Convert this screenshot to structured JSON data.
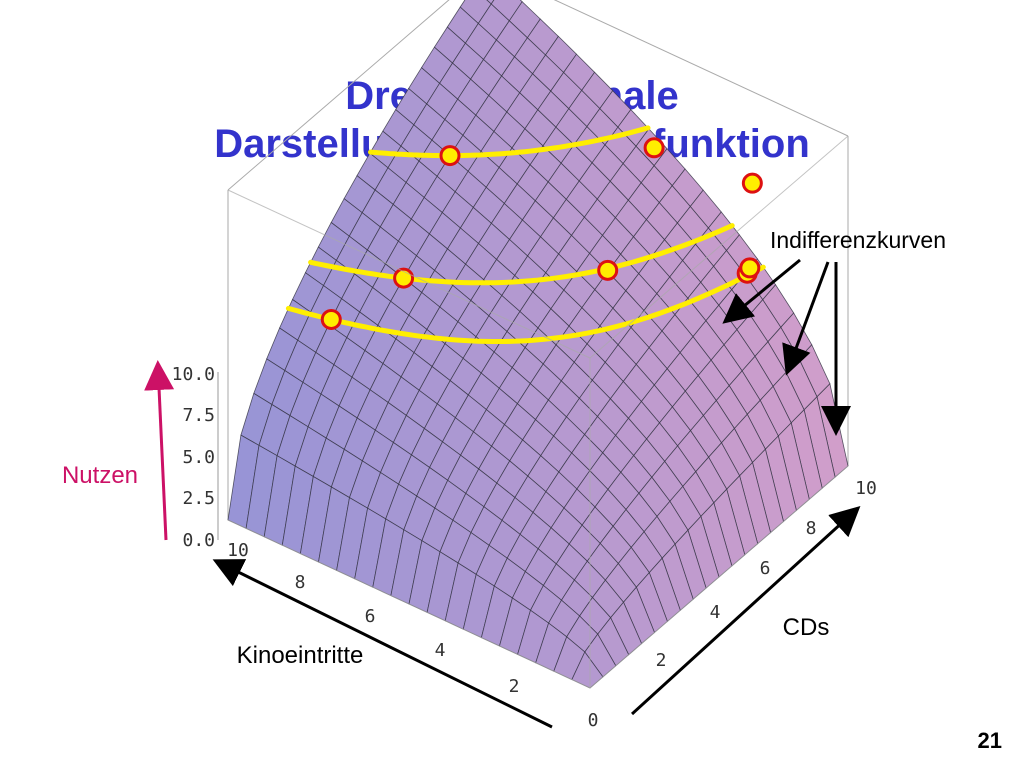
{
  "slide": {
    "title_line1": "Dreidimensionale",
    "title_line2": "Darstellung der Nutzenfunktion",
    "page_number": "21"
  },
  "chart_data": {
    "type": "surface3d",
    "function": "Nutzen = sqrt(Kinoeintritte * CDs)",
    "x_axis": {
      "label": "Kinoeintritte",
      "range": [
        0,
        10
      ],
      "ticks": [
        "10",
        "8",
        "6",
        "4",
        "2"
      ]
    },
    "y_axis": {
      "label": "CDs",
      "range": [
        0,
        10
      ],
      "ticks": [
        "0",
        "2",
        "4",
        "6",
        "8",
        "10"
      ]
    },
    "z_axis": {
      "label": "Nutzen",
      "range": [
        0,
        10
      ],
      "ticks": [
        "0.0",
        "2.5",
        "5.0",
        "7.5",
        "10.0"
      ]
    },
    "annotation": "Indifferenzkurven",
    "indifference_curves": [
      {
        "points": [
          [
            9.0,
            2.6
          ],
          [
            2.5,
            9.6
          ]
        ]
      },
      {
        "points": [
          [
            8.0,
            4.0
          ],
          [
            4.5,
            7.0
          ],
          [
            2.0,
            9.0
          ]
        ]
      },
      {
        "points": [
          [
            8.5,
            6.5
          ],
          [
            5.0,
            9.5
          ],
          [
            2.5,
            9.8
          ]
        ]
      }
    ],
    "colors": {
      "surface": "#9b97d6",
      "surface_warm": "#c7a0c8",
      "mesh": "#333344",
      "curve": "#ffee00",
      "marker_fill": "#ffee00",
      "marker_stroke": "#dd1111",
      "title": "#3333cc",
      "nutzen_label": "#cc1166"
    }
  }
}
